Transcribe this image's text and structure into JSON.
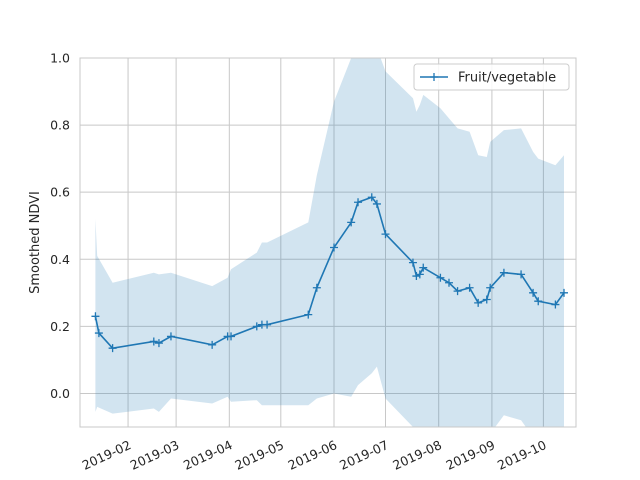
{
  "chart_data": {
    "type": "line",
    "xlabel": "",
    "ylabel": "Smoothed NDVI",
    "xlim": [
      "2019-01-04",
      "2019-10-20"
    ],
    "ylim": [
      -0.1,
      1.0
    ],
    "grid": true,
    "legend": "top-right",
    "x_ticks": [
      {
        "date": "2019-02-01",
        "label": "2019-02"
      },
      {
        "date": "2019-03-01",
        "label": "2019-03"
      },
      {
        "date": "2019-04-01",
        "label": "2019-04"
      },
      {
        "date": "2019-05-01",
        "label": "2019-05"
      },
      {
        "date": "2019-06-01",
        "label": "2019-06"
      },
      {
        "date": "2019-07-01",
        "label": "2019-07"
      },
      {
        "date": "2019-08-01",
        "label": "2019-08"
      },
      {
        "date": "2019-09-01",
        "label": "2019-09"
      },
      {
        "date": "2019-10-01",
        "label": "2019-10"
      }
    ],
    "y_ticks": [
      0.0,
      0.2,
      0.4,
      0.6,
      0.8,
      1.0
    ],
    "y_tick_labels": [
      "0.0",
      "0.2",
      "0.4",
      "0.6",
      "0.8",
      "1.0"
    ],
    "colors": {
      "line": "#1f77b4",
      "band": "#1f77b4",
      "grid": "#c8c8c8",
      "frame": "#c8c8c8"
    },
    "series": [
      {
        "name": "Fruit/vegetable",
        "points": [
          {
            "x": "2019-01-13",
            "y": 0.23
          },
          {
            "x": "2019-01-15",
            "y": 0.18
          },
          {
            "x": "2019-01-23",
            "y": 0.135
          },
          {
            "x": "2019-02-16",
            "y": 0.155
          },
          {
            "x": "2019-02-19",
            "y": 0.15
          },
          {
            "x": "2019-02-26",
            "y": 0.17
          },
          {
            "x": "2019-03-22",
            "y": 0.145
          },
          {
            "x": "2019-03-31",
            "y": 0.17
          },
          {
            "x": "2019-04-02",
            "y": 0.17
          },
          {
            "x": "2019-04-17",
            "y": 0.2
          },
          {
            "x": "2019-04-20",
            "y": 0.205
          },
          {
            "x": "2019-04-23",
            "y": 0.205
          },
          {
            "x": "2019-05-17",
            "y": 0.235
          },
          {
            "x": "2019-05-22",
            "y": 0.315
          },
          {
            "x": "2019-06-01",
            "y": 0.435
          },
          {
            "x": "2019-06-11",
            "y": 0.51
          },
          {
            "x": "2019-06-15",
            "y": 0.57
          },
          {
            "x": "2019-06-23",
            "y": 0.585
          },
          {
            "x": "2019-06-26",
            "y": 0.565
          },
          {
            "x": "2019-07-01",
            "y": 0.475
          },
          {
            "x": "2019-07-17",
            "y": 0.39
          },
          {
            "x": "2019-07-19",
            "y": 0.35
          },
          {
            "x": "2019-07-21",
            "y": 0.355
          },
          {
            "x": "2019-07-23",
            "y": 0.375
          },
          {
            "x": "2019-08-02",
            "y": 0.345
          },
          {
            "x": "2019-08-07",
            "y": 0.33
          },
          {
            "x": "2019-08-12",
            "y": 0.305
          },
          {
            "x": "2019-08-19",
            "y": 0.315
          },
          {
            "x": "2019-08-24",
            "y": 0.27
          },
          {
            "x": "2019-08-29",
            "y": 0.28
          },
          {
            "x": "2019-08-31",
            "y": 0.315
          },
          {
            "x": "2019-09-08",
            "y": 0.36
          },
          {
            "x": "2019-09-18",
            "y": 0.355
          },
          {
            "x": "2019-09-25",
            "y": 0.3
          },
          {
            "x": "2019-09-28",
            "y": 0.275
          },
          {
            "x": "2019-10-08",
            "y": 0.265
          },
          {
            "x": "2019-10-13",
            "y": 0.3
          }
        ]
      }
    ],
    "band": {
      "upper": [
        {
          "x": "2019-01-13",
          "y": 0.52
        },
        {
          "x": "2019-01-14",
          "y": 0.41
        },
        {
          "x": "2019-01-23",
          "y": 0.33
        },
        {
          "x": "2019-02-16",
          "y": 0.36
        },
        {
          "x": "2019-02-19",
          "y": 0.355
        },
        {
          "x": "2019-02-26",
          "y": 0.36
        },
        {
          "x": "2019-03-22",
          "y": 0.32
        },
        {
          "x": "2019-03-31",
          "y": 0.345
        },
        {
          "x": "2019-04-02",
          "y": 0.37
        },
        {
          "x": "2019-04-17",
          "y": 0.42
        },
        {
          "x": "2019-04-20",
          "y": 0.45
        },
        {
          "x": "2019-04-23",
          "y": 0.45
        },
        {
          "x": "2019-05-17",
          "y": 0.51
        },
        {
          "x": "2019-05-22",
          "y": 0.65
        },
        {
          "x": "2019-06-01",
          "y": 0.87
        },
        {
          "x": "2019-06-11",
          "y": 1.0
        },
        {
          "x": "2019-06-15",
          "y": 1.06
        },
        {
          "x": "2019-06-23",
          "y": 1.06
        },
        {
          "x": "2019-06-26",
          "y": 1.03
        },
        {
          "x": "2019-07-01",
          "y": 0.96
        },
        {
          "x": "2019-07-17",
          "y": 0.88
        },
        {
          "x": "2019-07-19",
          "y": 0.84
        },
        {
          "x": "2019-07-21",
          "y": 0.86
        },
        {
          "x": "2019-07-23",
          "y": 0.89
        },
        {
          "x": "2019-08-02",
          "y": 0.85
        },
        {
          "x": "2019-08-07",
          "y": 0.82
        },
        {
          "x": "2019-08-12",
          "y": 0.79
        },
        {
          "x": "2019-08-19",
          "y": 0.78
        },
        {
          "x": "2019-08-24",
          "y": 0.71
        },
        {
          "x": "2019-08-29",
          "y": 0.705
        },
        {
          "x": "2019-08-31",
          "y": 0.75
        },
        {
          "x": "2019-09-08",
          "y": 0.785
        },
        {
          "x": "2019-09-18",
          "y": 0.79
        },
        {
          "x": "2019-09-25",
          "y": 0.72
        },
        {
          "x": "2019-09-28",
          "y": 0.7
        },
        {
          "x": "2019-10-08",
          "y": 0.68
        },
        {
          "x": "2019-10-13",
          "y": 0.71
        }
      ],
      "lower": [
        {
          "x": "2019-01-13",
          "y": -0.055
        },
        {
          "x": "2019-01-14",
          "y": -0.04
        },
        {
          "x": "2019-01-23",
          "y": -0.06
        },
        {
          "x": "2019-02-16",
          "y": -0.045
        },
        {
          "x": "2019-02-19",
          "y": -0.055
        },
        {
          "x": "2019-02-26",
          "y": -0.015
        },
        {
          "x": "2019-03-22",
          "y": -0.03
        },
        {
          "x": "2019-03-31",
          "y": -0.01
        },
        {
          "x": "2019-04-02",
          "y": -0.025
        },
        {
          "x": "2019-04-17",
          "y": -0.02
        },
        {
          "x": "2019-04-20",
          "y": -0.035
        },
        {
          "x": "2019-04-23",
          "y": -0.035
        },
        {
          "x": "2019-05-17",
          "y": -0.035
        },
        {
          "x": "2019-05-22",
          "y": -0.015
        },
        {
          "x": "2019-06-01",
          "y": -0.0
        },
        {
          "x": "2019-06-11",
          "y": -0.01
        },
        {
          "x": "2019-06-15",
          "y": 0.025
        },
        {
          "x": "2019-06-23",
          "y": 0.06
        },
        {
          "x": "2019-06-26",
          "y": 0.08
        },
        {
          "x": "2019-07-01",
          "y": -0.015
        },
        {
          "x": "2019-07-17",
          "y": -0.1
        },
        {
          "x": "2019-07-19",
          "y": -0.15
        },
        {
          "x": "2019-07-21",
          "y": -0.15
        },
        {
          "x": "2019-07-23",
          "y": -0.15
        },
        {
          "x": "2019-08-02",
          "y": -0.16
        },
        {
          "x": "2019-08-07",
          "y": -0.17
        },
        {
          "x": "2019-08-12",
          "y": -0.18
        },
        {
          "x": "2019-08-19",
          "y": -0.15
        },
        {
          "x": "2019-08-24",
          "y": -0.17
        },
        {
          "x": "2019-08-29",
          "y": -0.15
        },
        {
          "x": "2019-08-31",
          "y": -0.12
        },
        {
          "x": "2019-09-08",
          "y": -0.065
        },
        {
          "x": "2019-09-18",
          "y": -0.08
        },
        {
          "x": "2019-09-25",
          "y": -0.13
        },
        {
          "x": "2019-09-28",
          "y": -0.15
        },
        {
          "x": "2019-10-08",
          "y": -0.15
        },
        {
          "x": "2019-10-13",
          "y": -0.11
        }
      ]
    }
  }
}
